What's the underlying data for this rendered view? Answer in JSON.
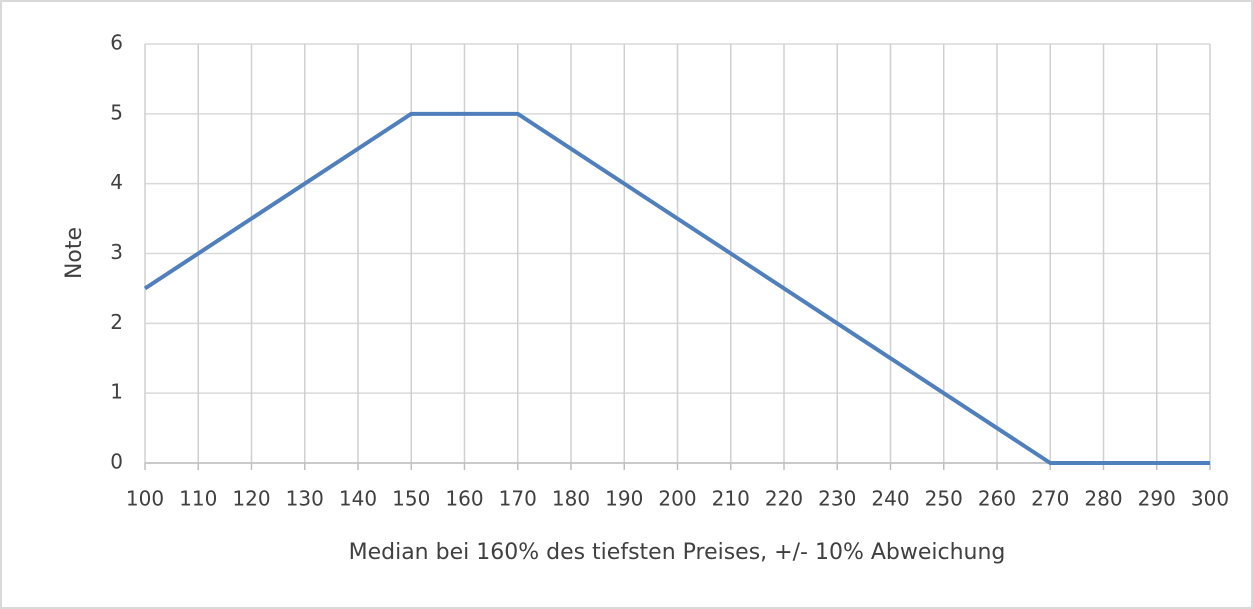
{
  "chart_data": {
    "type": "line",
    "x_label": "Median bei 160% des tiefsten Preises, +/- 10% Abweichung",
    "y_label": "Note",
    "x": [
      100,
      150,
      170,
      270,
      300
    ],
    "series": [
      {
        "name": "Note",
        "color": "#4f7fbd",
        "values": [
          2.5,
          5,
          5,
          0,
          0
        ]
      }
    ],
    "xlim": [
      100,
      300
    ],
    "xticks": [
      100,
      110,
      120,
      130,
      140,
      150,
      160,
      170,
      180,
      190,
      200,
      210,
      220,
      230,
      240,
      250,
      260,
      270,
      280,
      290,
      300
    ],
    "ylim": [
      0,
      6
    ],
    "yticks": [
      0,
      1,
      2,
      3,
      4,
      5,
      6
    ],
    "grid": true
  }
}
